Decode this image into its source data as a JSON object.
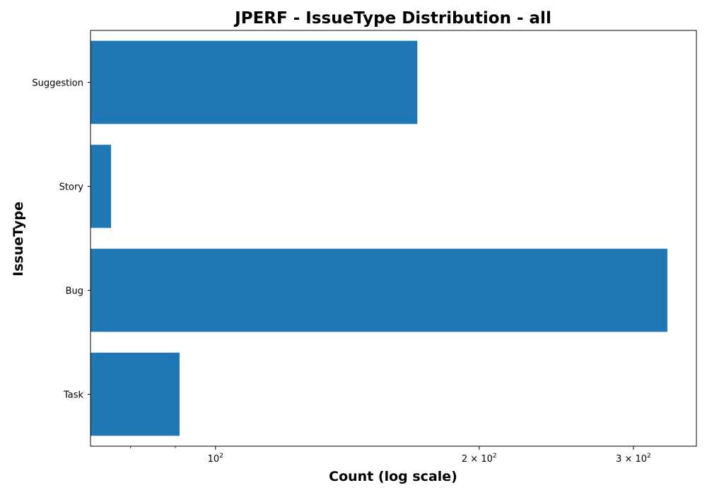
{
  "chart_data": {
    "type": "bar",
    "orientation": "horizontal",
    "title": "JPERF - IssueType Distribution - all",
    "xlabel": "Count (log scale)",
    "ylabel": "IssueType",
    "x_scale": "log",
    "xlim": [
      72,
      354
    ],
    "categories": [
      "Suggestion",
      "Story",
      "Bug",
      "Task"
    ],
    "values": [
      170,
      76,
      328,
      91
    ],
    "x_ticks": [
      {
        "value": 100,
        "label": "10",
        "exp": "2"
      },
      {
        "value": 200,
        "label": "2 × 10",
        "exp": "2"
      },
      {
        "value": 300,
        "label": "3 × 10",
        "exp": "2"
      }
    ],
    "minor_ticks": [
      80,
      90
    ],
    "bar_color": "#1f77b4",
    "grid": false,
    "legend": "none"
  }
}
